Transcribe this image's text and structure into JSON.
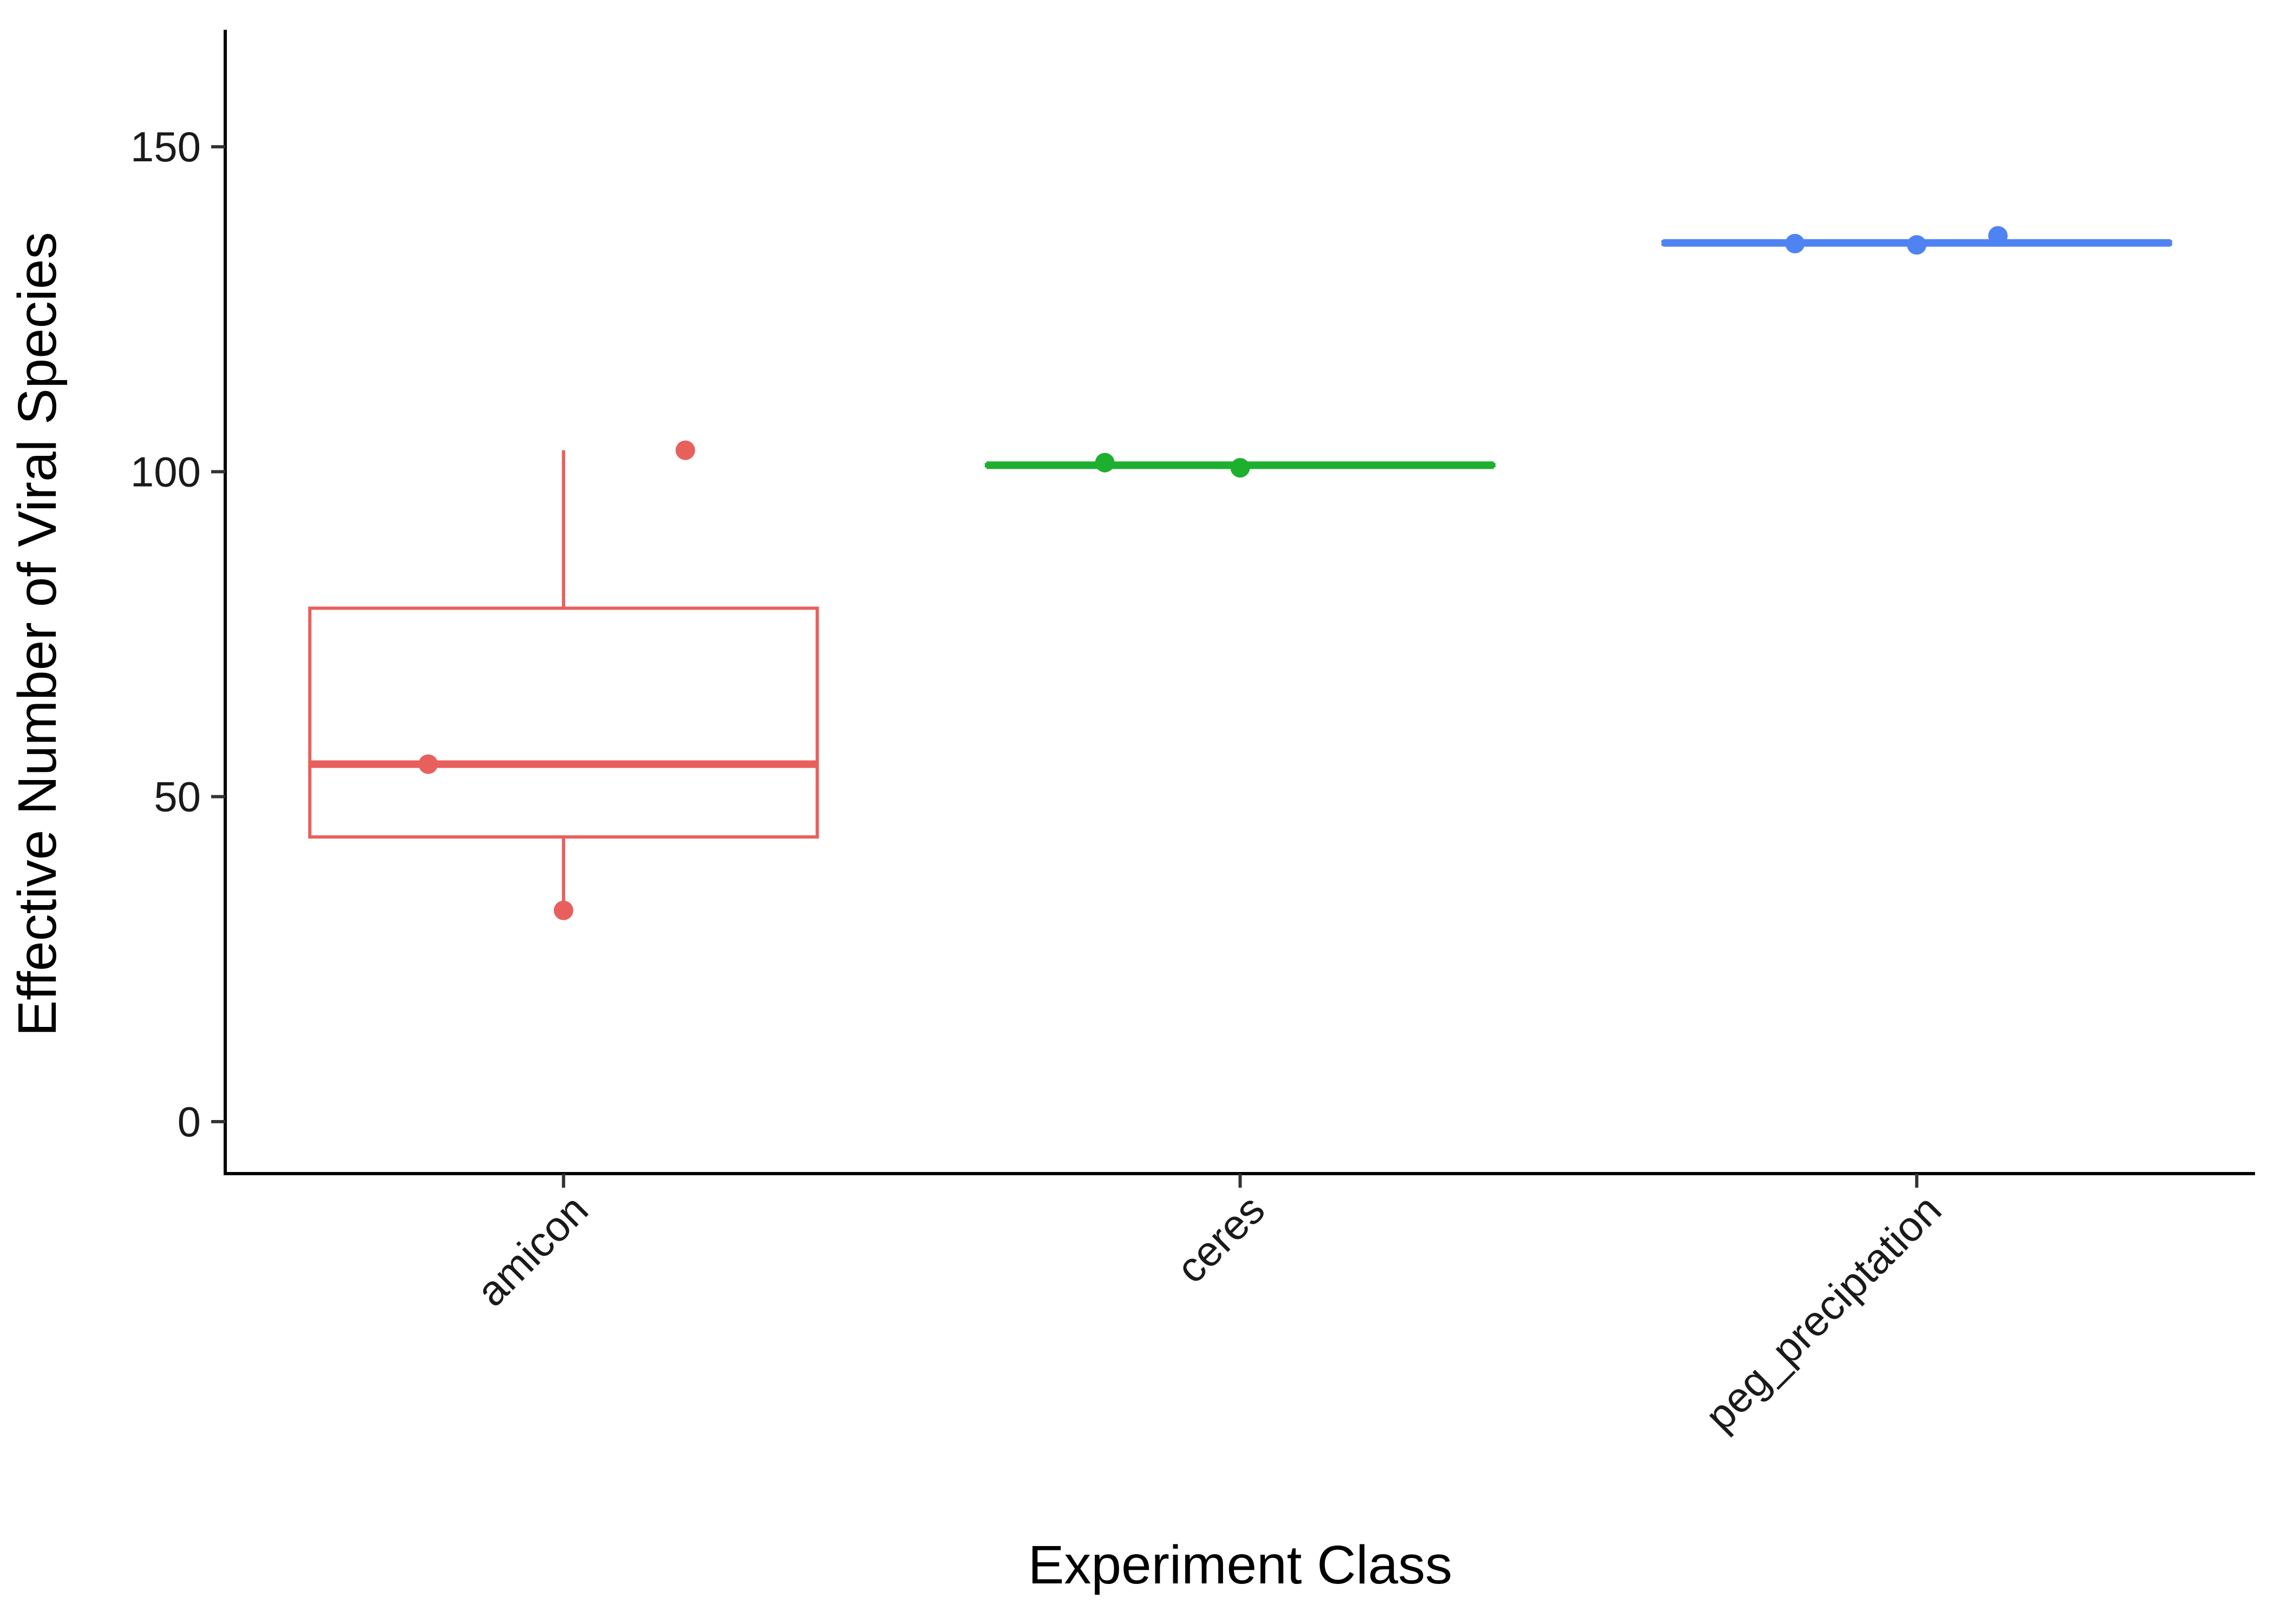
{
  "chart_data": {
    "type": "boxplot",
    "title": "",
    "xlabel": "Experiment Class",
    "ylabel": "Effective Number of Viral Species",
    "ylim": [
      -8,
      168
    ],
    "y_ticks": [
      0,
      50,
      100,
      150
    ],
    "y_tick_labels": [
      "0",
      "50",
      "100",
      "150"
    ],
    "categories": [
      "amicon",
      "ceres",
      "peg_preciptation"
    ],
    "groups": [
      {
        "name": "amicon",
        "color": "#E8605C",
        "box": {
          "lower_whisker": 32.5,
          "q1": 43.8,
          "median": 55.0,
          "q3": 79.0,
          "upper_whisker": 103.3
        },
        "points": [
          {
            "x_offset": -0.2,
            "y": 55.0
          },
          {
            "x_offset": 0.0,
            "y": 32.5
          },
          {
            "x_offset": 0.18,
            "y": 103.3
          }
        ]
      },
      {
        "name": "ceres",
        "color": "#1DAF2E",
        "box": {
          "lower_whisker": 100.6,
          "q1": 100.9,
          "median": 101.0,
          "q3": 101.1,
          "upper_whisker": 101.4
        },
        "points": [
          {
            "x_offset": -0.2,
            "y": 101.4
          },
          {
            "x_offset": 0.0,
            "y": 100.6
          }
        ]
      },
      {
        "name": "peg_preciptation",
        "color": "#5083F2",
        "box": {
          "lower_whisker": 134.8,
          "q1": 135.0,
          "median": 135.2,
          "q3": 135.4,
          "upper_whisker": 136.3
        },
        "points": [
          {
            "x_offset": -0.18,
            "y": 135.1
          },
          {
            "x_offset": 0.0,
            "y": 134.9
          },
          {
            "x_offset": 0.12,
            "y": 136.3
          }
        ]
      }
    ]
  }
}
